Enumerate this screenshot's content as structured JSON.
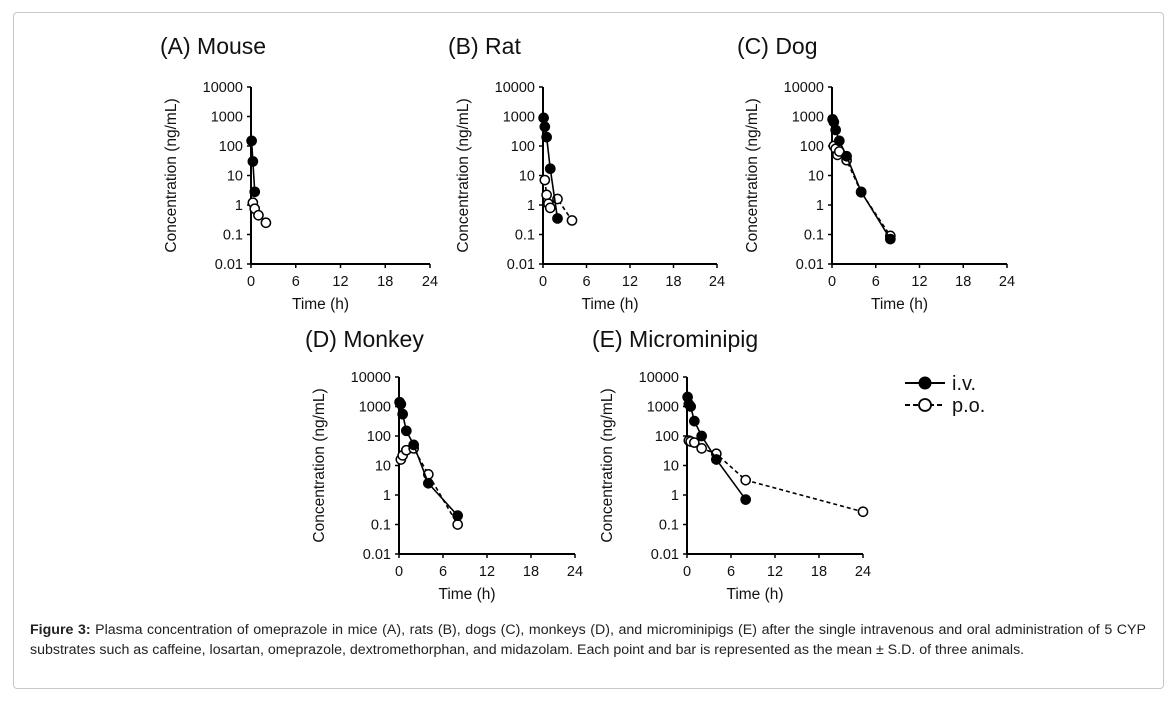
{
  "caption": {
    "label": "Figure 3:",
    "text": " Plasma concentration of omeprazole in mice (A), rats (B), dogs (C), monkeys (D), and microminipigs (E) after the single intravenous and oral administration of 5 CYP substrates such as caffeine, losartan, omeprazole, dextromethorphan, and midazolam.  Each point and bar is represented as the mean ± S.D. of three animals."
  },
  "legend": {
    "iv": "i.v.",
    "po": "p.o.",
    "placement": "right of panel E"
  },
  "chart_data": [
    {
      "type": "line",
      "title": "(A) Mouse",
      "xlabel": "Time (h)",
      "ylabel": "Concentration (ng/mL)",
      "xlim": [
        0,
        24
      ],
      "xticks": [
        "0",
        "6",
        "12",
        "18",
        "24"
      ],
      "ylim": [
        0.01,
        10000
      ],
      "yscale": "log",
      "yticks": [
        "0.01",
        "0.1",
        "1",
        "10",
        "100",
        "1000",
        "10000"
      ],
      "series": [
        {
          "name": "i.v.",
          "style": "solid-filled",
          "points": [
            [
              0.083,
              150
            ],
            [
              0.25,
              30
            ],
            [
              0.5,
              2.8
            ]
          ]
        },
        {
          "name": "p.o.",
          "style": "dashed-open",
          "points": [
            [
              0.25,
              1.2
            ],
            [
              0.5,
              0.75
            ],
            [
              1,
              0.45
            ],
            [
              2,
              0.25
            ]
          ]
        }
      ]
    },
    {
      "type": "line",
      "title": "(B) Rat",
      "xlabel": "Time (h)",
      "ylabel": "Concentration (ng/mL)",
      "xlim": [
        0,
        24
      ],
      "xticks": [
        "0",
        "6",
        "12",
        "18",
        "24"
      ],
      "ylim": [
        0.01,
        10000
      ],
      "yscale": "log",
      "yticks": [
        "0.01",
        "0.1",
        "1",
        "10",
        "100",
        "1000",
        "10000"
      ],
      "series": [
        {
          "name": "i.v.",
          "style": "solid-filled",
          "points": [
            [
              0.083,
              900
            ],
            [
              0.25,
              450
            ],
            [
              0.5,
              200
            ],
            [
              1,
              17
            ],
            [
              2,
              0.35
            ]
          ]
        },
        {
          "name": "p.o.",
          "style": "dashed-open",
          "points": [
            [
              0.25,
              7
            ],
            [
              0.5,
              2.2
            ],
            [
              0.75,
              1.1
            ],
            [
              1,
              0.8
            ],
            [
              2,
              1.6
            ],
            [
              4,
              0.3
            ]
          ]
        }
      ]
    },
    {
      "type": "line",
      "title": "(C) Dog",
      "xlabel": "Time (h)",
      "ylabel": "Concentration (ng/mL)",
      "xlim": [
        0,
        24
      ],
      "xticks": [
        "0",
        "6",
        "12",
        "18",
        "24"
      ],
      "ylim": [
        0.01,
        10000
      ],
      "yscale": "log",
      "yticks": [
        "0.01",
        "0.1",
        "1",
        "10",
        "100",
        "1000",
        "10000"
      ],
      "series": [
        {
          "name": "i.v.",
          "style": "solid-filled",
          "points": [
            [
              0.083,
              800
            ],
            [
              0.25,
              650
            ],
            [
              0.5,
              350
            ],
            [
              1,
              150
            ],
            [
              2,
              45
            ],
            [
              4,
              2.8
            ],
            [
              8,
              0.07
            ]
          ]
        },
        {
          "name": "p.o.",
          "style": "dashed-open",
          "points": [
            [
              0.25,
              100
            ],
            [
              0.5,
              80
            ],
            [
              0.75,
              50
            ],
            [
              1,
              65
            ],
            [
              2,
              33
            ],
            [
              4,
              2.7
            ],
            [
              8,
              0.09
            ]
          ]
        }
      ]
    },
    {
      "type": "line",
      "title": "(D) Monkey",
      "xlabel": "Time (h)",
      "ylabel": "Concentration (ng/mL)",
      "xlim": [
        0,
        24
      ],
      "xticks": [
        "0",
        "6",
        "12",
        "18",
        "24"
      ],
      "ylim": [
        0.01,
        10000
      ],
      "yscale": "log",
      "yticks": [
        "0.01",
        "0.1",
        "1",
        "10",
        "100",
        "1000",
        "10000"
      ],
      "series": [
        {
          "name": "i.v.",
          "style": "solid-filled",
          "points": [
            [
              0.083,
              1400
            ],
            [
              0.25,
              1200
            ],
            [
              0.5,
              550
            ],
            [
              1,
              150
            ],
            [
              2,
              50
            ],
            [
              4,
              2.5
            ],
            [
              8,
              0.2
            ]
          ]
        },
        {
          "name": "p.o.",
          "style": "dashed-open",
          "points": [
            [
              0.25,
              16
            ],
            [
              0.5,
              22
            ],
            [
              1,
              33
            ],
            [
              2,
              38
            ],
            [
              4,
              5
            ],
            [
              8,
              0.1
            ]
          ]
        }
      ]
    },
    {
      "type": "line",
      "title": "(E) Microminipig",
      "xlabel": "Time (h)",
      "ylabel": "Concentration (ng/mL)",
      "xlim": [
        0,
        24
      ],
      "xticks": [
        "0",
        "6",
        "12",
        "18",
        "24"
      ],
      "ylim": [
        0.01,
        10000
      ],
      "yscale": "log",
      "yticks": [
        "0.01",
        "0.1",
        "1",
        "10",
        "100",
        "1000",
        "10000"
      ],
      "series": [
        {
          "name": "i.v.",
          "style": "solid-filled",
          "points": [
            [
              0.083,
              2100
            ],
            [
              0.25,
              1200
            ],
            [
              0.5,
              1000
            ],
            [
              1,
              320
            ],
            [
              2,
              100
            ],
            [
              4,
              16
            ],
            [
              8,
              0.7
            ]
          ]
        },
        {
          "name": "p.o.",
          "style": "dashed-open",
          "points": [
            [
              0.25,
              70
            ],
            [
              0.5,
              65
            ],
            [
              1,
              60
            ],
            [
              2,
              38
            ],
            [
              4,
              25
            ],
            [
              8,
              3.2
            ],
            [
              24,
              0.27
            ]
          ]
        }
      ]
    }
  ]
}
